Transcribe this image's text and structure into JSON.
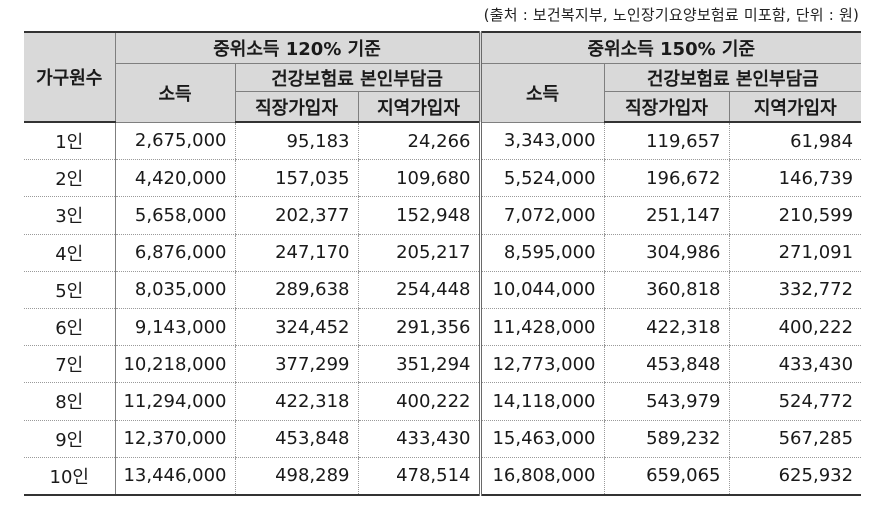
{
  "source_note": "(출처 : 보건복지부, 노인장기요양보험료 미포함, 단위 : 원)",
  "header": {
    "household_label": "가구원수",
    "group_120": "중위소득 120% 기준",
    "group_150": "중위소득 150% 기준",
    "income_label": "소득",
    "premium_label": "건강보험료 본인부담금",
    "workplace_label": "직장가입자",
    "regional_label": "지역가입자"
  },
  "rows": [
    {
      "size": "1인",
      "inc120": "2,675,000",
      "work120": "95,183",
      "reg120": "24,266",
      "inc150": "3,343,000",
      "work150": "119,657",
      "reg150": "61,984"
    },
    {
      "size": "2인",
      "inc120": "4,420,000",
      "work120": "157,035",
      "reg120": "109,680",
      "inc150": "5,524,000",
      "work150": "196,672",
      "reg150": "146,739"
    },
    {
      "size": "3인",
      "inc120": "5,658,000",
      "work120": "202,377",
      "reg120": "152,948",
      "inc150": "7,072,000",
      "work150": "251,147",
      "reg150": "210,599"
    },
    {
      "size": "4인",
      "inc120": "6,876,000",
      "work120": "247,170",
      "reg120": "205,217",
      "inc150": "8,595,000",
      "work150": "304,986",
      "reg150": "271,091"
    },
    {
      "size": "5인",
      "inc120": "8,035,000",
      "work120": "289,638",
      "reg120": "254,448",
      "inc150": "10,044,000",
      "work150": "360,818",
      "reg150": "332,772"
    },
    {
      "size": "6인",
      "inc120": "9,143,000",
      "work120": "324,452",
      "reg120": "291,356",
      "inc150": "11,428,000",
      "work150": "422,318",
      "reg150": "400,222"
    },
    {
      "size": "7인",
      "inc120": "10,218,000",
      "work120": "377,299",
      "reg120": "351,294",
      "inc150": "12,773,000",
      "work150": "453,848",
      "reg150": "433,430"
    },
    {
      "size": "8인",
      "inc120": "11,294,000",
      "work120": "422,318",
      "reg120": "400,222",
      "inc150": "14,118,000",
      "work150": "543,979",
      "reg150": "524,772"
    },
    {
      "size": "9인",
      "inc120": "12,370,000",
      "work120": "453,848",
      "reg120": "433,430",
      "inc150": "15,463,000",
      "work150": "589,232",
      "reg150": "567,285"
    },
    {
      "size": "10인",
      "inc120": "13,446,000",
      "work120": "498,289",
      "reg120": "478,514",
      "inc150": "16,808,000",
      "work150": "659,065",
      "reg150": "625,932"
    }
  ]
}
